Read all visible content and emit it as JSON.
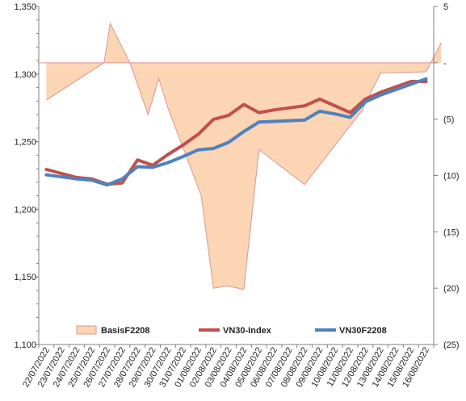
{
  "chart_data": {
    "type": "line",
    "title": "",
    "xlabel": "",
    "ylabel": "",
    "y2label": "",
    "legend_position": "bottom",
    "grid": false,
    "x": [
      "22/07/2022",
      "23/07/2022",
      "24/07/2022",
      "25/07/2022",
      "26/07/2022",
      "27/07/2022",
      "28/07/2022",
      "29/07/2022",
      "30/07/2022",
      "31/07/2022",
      "01/08/2022",
      "02/08/2022",
      "03/08/2022",
      "04/08/2022",
      "05/08/2022",
      "06/08/2022",
      "07/08/2022",
      "08/08/2022",
      "09/08/2022",
      "10/08/2022",
      "11/08/2022",
      "12/08/2022",
      "13/08/2022",
      "14/08/2022",
      "15/08/2022",
      "16/08/2022"
    ],
    "ylim": [
      1100,
      1350
    ],
    "yticks": [
      1100,
      1150,
      1200,
      1250,
      1300,
      1350
    ],
    "ytick_labels": [
      "1,100",
      "1,150",
      "1,200",
      "1,250",
      "1,300",
      "1,350"
    ],
    "y2lim": [
      -25,
      5
    ],
    "y2ticks": [
      5,
      0,
      -5,
      -10,
      -15,
      -20,
      -25
    ],
    "y2tick_labels": [
      "5",
      "-",
      "(5)",
      "(10)",
      "(15)",
      "(20)",
      "(25)"
    ],
    "series": [
      {
        "name": "BasisF2208",
        "kind": "area",
        "axis": "right",
        "color": "#fcd5b5",
        "edge_color": "#d99694",
        "points": [
          [
            0,
            -3.3
          ],
          [
            3.8,
            0
          ],
          [
            4.2,
            3.5
          ],
          [
            5.5,
            0
          ],
          [
            6.7,
            -4.6
          ],
          [
            7.4,
            -1.4
          ],
          [
            8,
            -4
          ],
          [
            10.2,
            -11.8
          ],
          [
            11,
            -20
          ],
          [
            11.9,
            -19.8
          ],
          [
            13,
            -20.1
          ],
          [
            14,
            -7.7
          ],
          [
            17,
            -10.8
          ],
          [
            20.8,
            -4.2
          ],
          [
            22,
            -0.9
          ],
          [
            25,
            -0.8
          ],
          [
            26,
            1.8
          ]
        ]
      },
      {
        "name": "VN30-Index",
        "kind": "line",
        "axis": "left",
        "color": "#c0504d",
        "values": [
          1229.5,
          1226.5,
          1223.5,
          1222.5,
          1218.5,
          1219.5,
          1236.5,
          1232.5,
          1240.5,
          1247.5,
          1255.5,
          1266.5,
          1269.5,
          1277.5,
          1271.5,
          1273.5,
          1275,
          1276.5,
          1281.5,
          1276.5,
          1271.5,
          1281.5,
          1286.5,
          1290.5,
          1294.5,
          1294.5
        ]
      },
      {
        "name": "VN30F2208",
        "kind": "line",
        "axis": "left",
        "color": "#4f81bd",
        "values": [
          1225.5,
          1224,
          1222.5,
          1221.5,
          1218,
          1222.5,
          1231.5,
          1231,
          1234.5,
          1239,
          1244,
          1245,
          1249.5,
          1257.5,
          1264.5,
          1265,
          1265.5,
          1266,
          1272.5,
          1270.5,
          1268,
          1279.5,
          1284.5,
          1288.5,
          1292.5,
          1296.5
        ]
      }
    ]
  }
}
